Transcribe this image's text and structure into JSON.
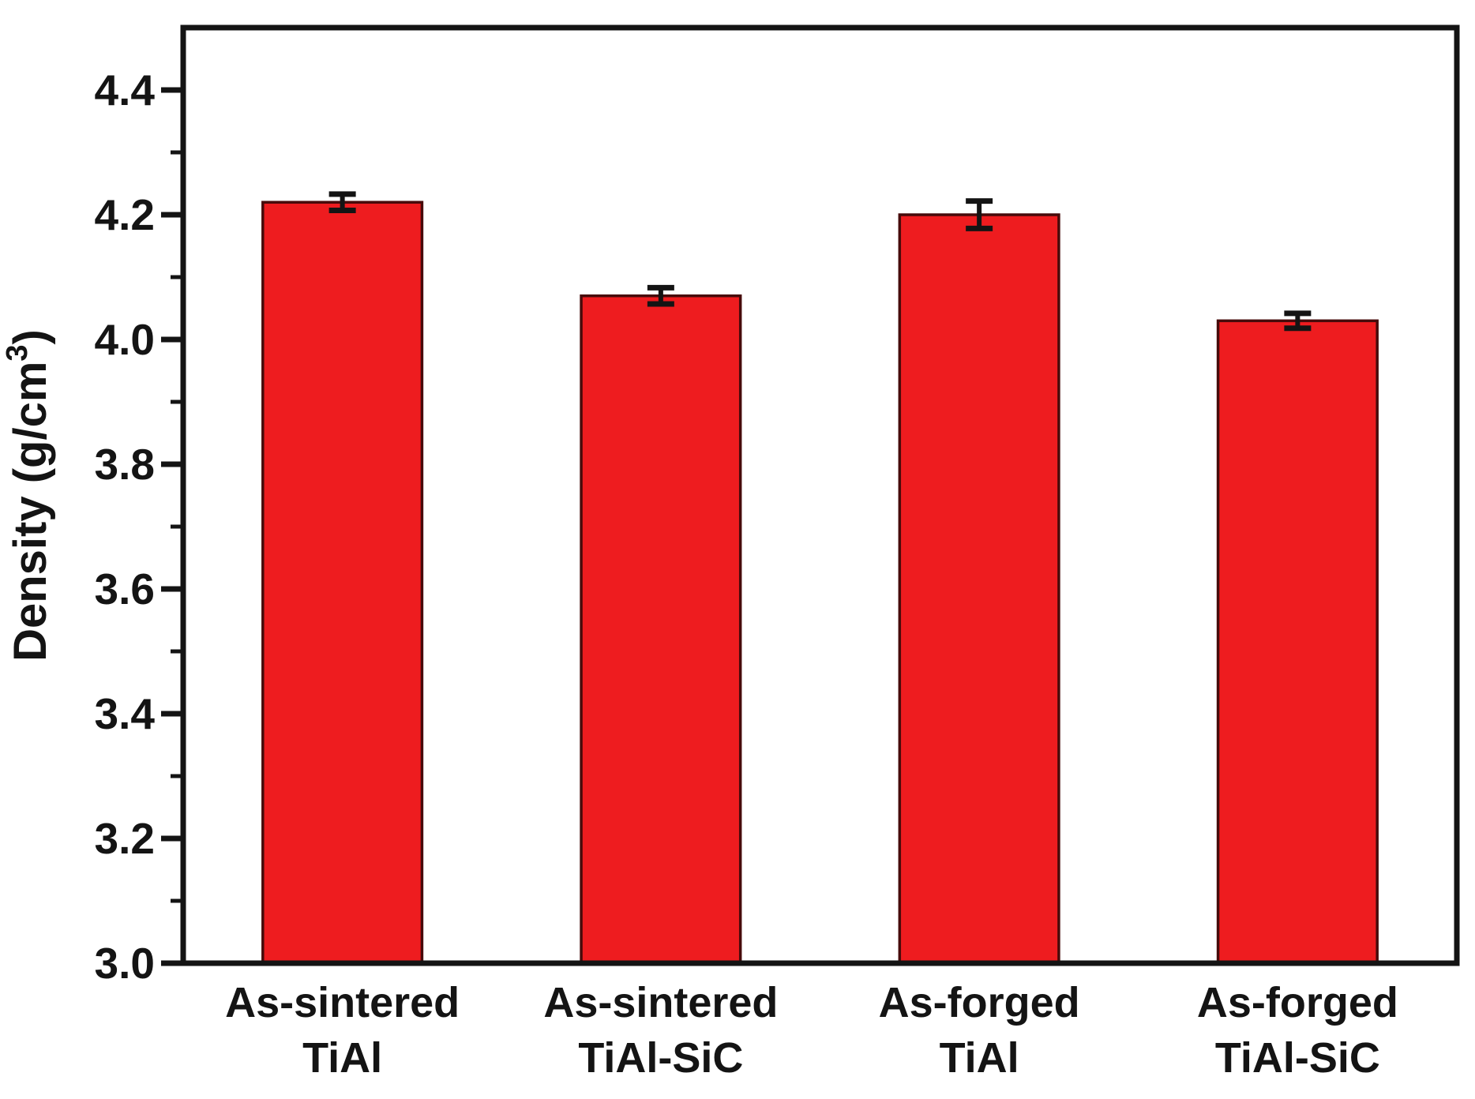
{
  "chart_data": {
    "type": "bar",
    "title": "",
    "xlabel": "",
    "ylabel": {
      "text": "Density (g/cm3)",
      "prefix": "Density (g/cm",
      "superscript": "3",
      "suffix": ")"
    },
    "ylim": [
      3.0,
      4.5
    ],
    "yticks": [
      3.0,
      3.2,
      3.4,
      3.6,
      3.8,
      4.0,
      4.2,
      4.4
    ],
    "ytick_labels": [
      "3.0",
      "3.2",
      "3.4",
      "3.6",
      "3.8",
      "4.0",
      "4.2",
      "4.4"
    ],
    "minor_yticks": [
      3.1,
      3.3,
      3.5,
      3.7,
      3.9,
      4.1,
      4.3
    ],
    "categories": [
      [
        "As-sintered",
        "TiAl"
      ],
      [
        "As-sintered",
        "TiAl-SiC"
      ],
      [
        "As-forged",
        "TiAl"
      ],
      [
        "As-forged",
        "TiAl-SiC"
      ]
    ],
    "series": [
      {
        "name": "Density",
        "values": [
          4.22,
          4.07,
          4.2,
          4.03
        ],
        "errors": [
          0.013,
          0.013,
          0.022,
          0.012
        ]
      }
    ],
    "grid": false,
    "legend": null,
    "colors": {
      "bar_fill": "#ee1c1f",
      "bar_edge": "#470b0b",
      "axis": "#141414",
      "error_bar": "#141414",
      "text": "#141414",
      "background": "#ffffff"
    }
  }
}
